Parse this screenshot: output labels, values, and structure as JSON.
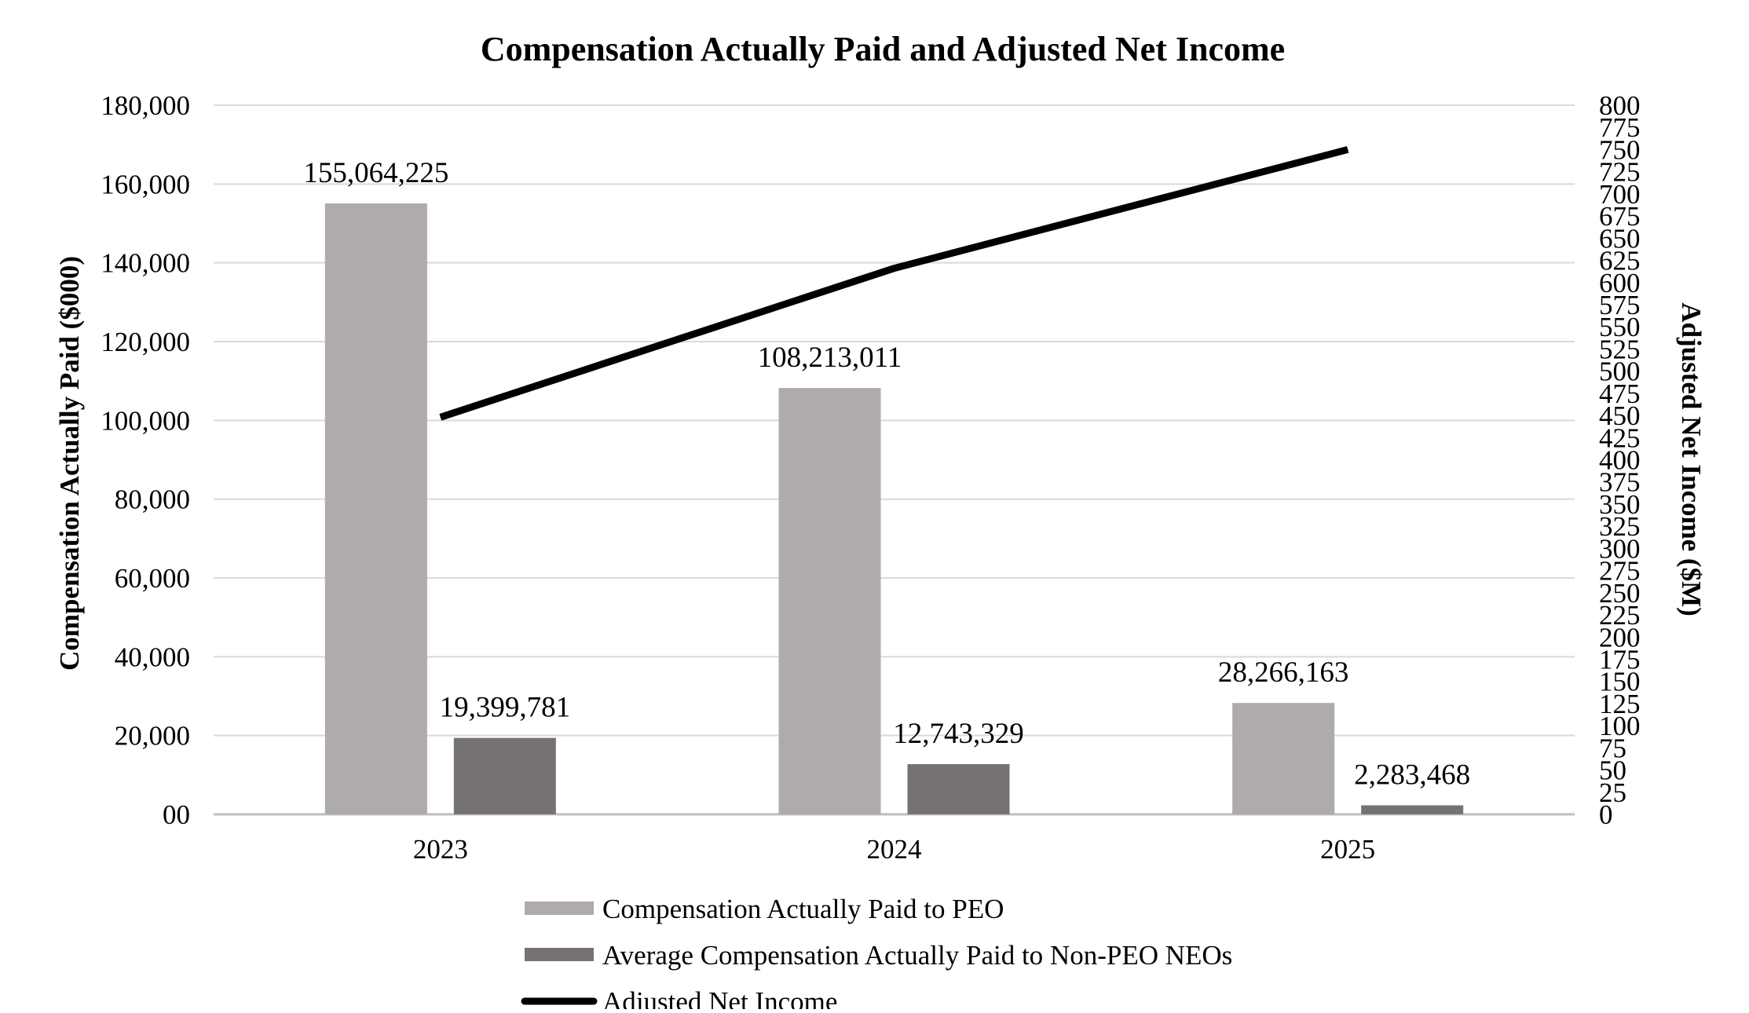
{
  "chart_data": {
    "type": "bar+line",
    "title": "Compensation Actually Paid and Adjusted Net Income",
    "categories": [
      "2023",
      "2024",
      "2025"
    ],
    "left_axis": {
      "label": "Compensation Actually Paid ($000)",
      "range": [
        0,
        180000
      ],
      "ticks": [
        0,
        20000,
        40000,
        60000,
        80000,
        100000,
        120000,
        140000,
        160000,
        180000
      ],
      "tick_labels": [
        "00",
        "20,000",
        "40,000",
        "60,000",
        "80,000",
        "100,000",
        "120,000",
        "140,000",
        "160,000",
        "180,000"
      ]
    },
    "right_axis": {
      "label": "Adjusted Net Income ($M)",
      "range": [
        0,
        800
      ],
      "ticks": [
        0,
        25,
        50,
        75,
        100,
        125,
        150,
        175,
        200,
        225,
        250,
        275,
        300,
        325,
        350,
        375,
        400,
        425,
        450,
        475,
        500,
        525,
        550,
        575,
        600,
        625,
        650,
        675,
        700,
        725,
        750,
        775,
        800
      ],
      "tick_labels": [
        "0",
        "25",
        "50",
        "75",
        "100",
        "125",
        "150",
        "175",
        "200",
        "225",
        "250",
        "275",
        "300",
        "325",
        "350",
        "375",
        "400",
        "425",
        "450",
        "475",
        "500",
        "525",
        "550",
        "575",
        "600",
        "625",
        "650",
        "675",
        "700",
        "725",
        "750",
        "775",
        "800"
      ]
    },
    "series": [
      {
        "name": "Compensation Actually Paid to PEO",
        "type": "bar",
        "axis": "left",
        "color": "#AEABAA",
        "values": [
          155064.225,
          108213.011,
          28266.163
        ],
        "labels": [
          "155,064,225",
          "108,213,011",
          "28,266,163"
        ]
      },
      {
        "name": "Average Compensation Actually Paid to Non-PEO NEOs",
        "type": "bar",
        "axis": "left",
        "color": "#767271",
        "values": [
          19399.781,
          12743.329,
          2283.468
        ],
        "labels": [
          "19,399,781",
          "12,743,329",
          "2,283,468"
        ]
      },
      {
        "name": "Adjusted Net Income",
        "type": "line",
        "axis": "right",
        "color": "#000000",
        "values": [
          448,
          616,
          750
        ]
      }
    ],
    "grid": true,
    "legend_position": "bottom"
  }
}
